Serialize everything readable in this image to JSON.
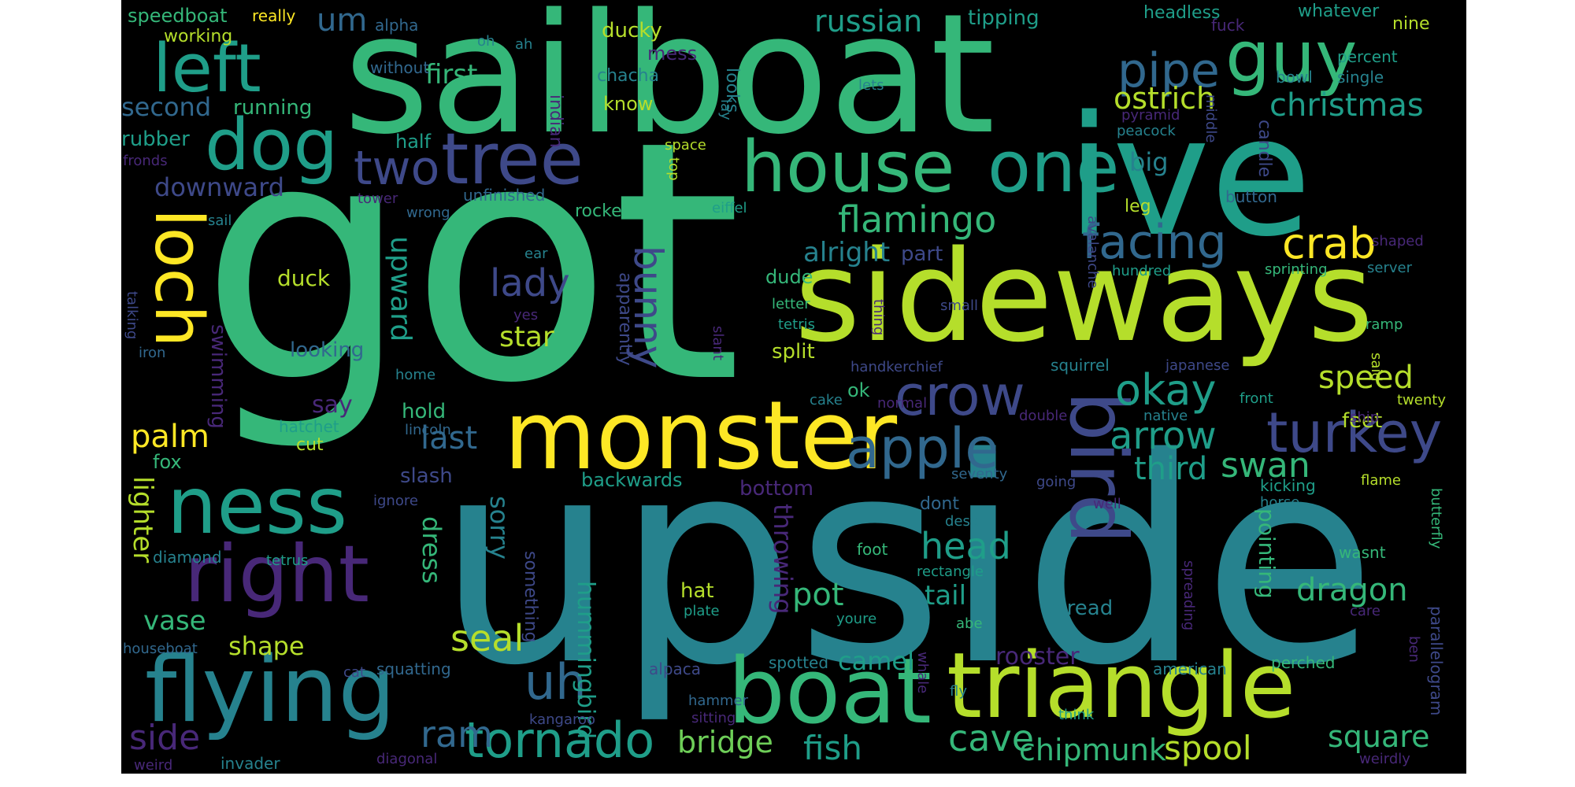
{
  "palette": {
    "background": "#000000",
    "page": "#ffffff",
    "words": [
      "#fde725",
      "#b5de2b",
      "#6ece58",
      "#35b779",
      "#1f9e89",
      "#26828e",
      "#31688e",
      "#3e4989",
      "#482878",
      "#440154"
    ]
  },
  "words": [
    {
      "text": "got"
    },
    {
      "text": "upside"
    },
    {
      "text": "sailboat"
    },
    {
      "text": "sideways"
    },
    {
      "text": "ive"
    },
    {
      "text": "monster"
    },
    {
      "text": "triangle"
    },
    {
      "text": "boat"
    },
    {
      "text": "flying"
    },
    {
      "text": "house"
    },
    {
      "text": "one"
    },
    {
      "text": "right"
    },
    {
      "text": "ness"
    },
    {
      "text": "tree"
    },
    {
      "text": "bird"
    },
    {
      "text": "dog"
    },
    {
      "text": "guy"
    },
    {
      "text": "left"
    },
    {
      "text": "loch"
    },
    {
      "text": "apple"
    },
    {
      "text": "crow"
    },
    {
      "text": "tornado"
    },
    {
      "text": "turkey"
    },
    {
      "text": "pipe"
    },
    {
      "text": "facing"
    },
    {
      "text": "crab"
    },
    {
      "text": "okay"
    },
    {
      "text": "two"
    },
    {
      "text": "uh"
    },
    {
      "text": "bunny"
    },
    {
      "text": "flamingo"
    },
    {
      "text": "arrow"
    },
    {
      "text": "head"
    },
    {
      "text": "cave"
    },
    {
      "text": "christmas"
    },
    {
      "text": "russian"
    },
    {
      "text": "ostrich"
    },
    {
      "text": "ram"
    },
    {
      "text": "swan"
    },
    {
      "text": "fish"
    },
    {
      "text": "third"
    },
    {
      "text": "lady"
    },
    {
      "text": "chipmunk"
    },
    {
      "text": "bridge"
    },
    {
      "text": "dragon"
    },
    {
      "text": "spool"
    },
    {
      "text": "square"
    },
    {
      "text": "speed"
    },
    {
      "text": "seal"
    },
    {
      "text": "side"
    },
    {
      "text": "palm"
    },
    {
      "text": "last"
    },
    {
      "text": "pot"
    },
    {
      "text": "upward"
    },
    {
      "text": "hummingbird"
    },
    {
      "text": "downward"
    },
    {
      "text": "second"
    },
    {
      "text": "first"
    },
    {
      "text": "star"
    },
    {
      "text": "alright"
    },
    {
      "text": "throwing"
    },
    {
      "text": "lighter"
    },
    {
      "text": "vase"
    },
    {
      "text": "tail"
    },
    {
      "text": "big"
    },
    {
      "text": "camel"
    },
    {
      "text": "shape"
    },
    {
      "text": "dress"
    },
    {
      "text": "sorry"
    },
    {
      "text": "rooster"
    },
    {
      "text": "pointing"
    },
    {
      "text": "say"
    },
    {
      "text": "um"
    },
    {
      "text": "duck"
    },
    {
      "text": "swimming"
    },
    {
      "text": "rubber"
    },
    {
      "text": "ducky"
    },
    {
      "text": "tipping"
    },
    {
      "text": "bottom"
    },
    {
      "text": "looking"
    },
    {
      "text": "running"
    },
    {
      "text": "hat"
    },
    {
      "text": "slash"
    },
    {
      "text": "split"
    },
    {
      "text": "part"
    },
    {
      "text": "hold"
    },
    {
      "text": "feet"
    },
    {
      "text": "working"
    },
    {
      "text": "apparently"
    },
    {
      "text": "backwards"
    },
    {
      "text": "dude"
    },
    {
      "text": "mess"
    },
    {
      "text": "know"
    },
    {
      "text": "half"
    },
    {
      "text": "speedboat"
    },
    {
      "text": "ok"
    },
    {
      "text": "fox"
    },
    {
      "text": "something"
    },
    {
      "text": "candle"
    },
    {
      "text": "cut"
    },
    {
      "text": "indian"
    },
    {
      "text": "really"
    },
    {
      "text": "looks"
    },
    {
      "text": "chacha"
    },
    {
      "text": "rocket"
    },
    {
      "text": "alpha"
    },
    {
      "text": "whatever"
    },
    {
      "text": "headless"
    },
    {
      "text": "nine"
    },
    {
      "text": "percent"
    },
    {
      "text": "single"
    },
    {
      "text": "fuck"
    },
    {
      "text": "bowl"
    },
    {
      "text": "pyramid"
    },
    {
      "text": "peacock"
    },
    {
      "text": "middle"
    },
    {
      "text": "lets"
    },
    {
      "text": "lay"
    },
    {
      "text": "space"
    },
    {
      "text": "top"
    },
    {
      "text": "eiffel"
    },
    {
      "text": "tower"
    },
    {
      "text": "unfinished"
    },
    {
      "text": "wrong"
    },
    {
      "text": "fronds"
    },
    {
      "text": "sail"
    },
    {
      "text": "ear"
    },
    {
      "text": "yes"
    },
    {
      "text": "talking"
    },
    {
      "text": "iron"
    },
    {
      "text": "home"
    },
    {
      "text": "hatchet"
    },
    {
      "text": "lincoln"
    },
    {
      "text": "ignore"
    },
    {
      "text": "diamond"
    },
    {
      "text": "tetrus"
    },
    {
      "text": "houseboat"
    },
    {
      "text": "cat"
    },
    {
      "text": "squatting"
    },
    {
      "text": "weird"
    },
    {
      "text": "invader"
    },
    {
      "text": "diagonal"
    },
    {
      "text": "kangaroo"
    },
    {
      "text": "sitting"
    },
    {
      "text": "hammer"
    },
    {
      "text": "alpaca"
    },
    {
      "text": "spotted"
    },
    {
      "text": "whale"
    },
    {
      "text": "fly"
    },
    {
      "text": "think"
    },
    {
      "text": "american"
    },
    {
      "text": "perched"
    },
    {
      "text": "parallelogram"
    },
    {
      "text": "weirdly"
    },
    {
      "text": "ben"
    },
    {
      "text": "care"
    },
    {
      "text": "spreading"
    },
    {
      "text": "wasnt"
    },
    {
      "text": "butterfly"
    },
    {
      "text": "flame"
    },
    {
      "text": "horse"
    },
    {
      "text": "kicking"
    },
    {
      "text": "twenty"
    },
    {
      "text": "ship"
    },
    {
      "text": "said"
    },
    {
      "text": "front"
    },
    {
      "text": "native"
    },
    {
      "text": "double"
    },
    {
      "text": "normal"
    },
    {
      "text": "handkerchief"
    },
    {
      "text": "japanese"
    },
    {
      "text": "squirrel"
    },
    {
      "text": "ramp"
    },
    {
      "text": "server"
    },
    {
      "text": "sprinting"
    },
    {
      "text": "shaped"
    },
    {
      "text": "hundred"
    },
    {
      "text": "avalanche"
    },
    {
      "text": "small"
    },
    {
      "text": "letter"
    },
    {
      "text": "tetris"
    },
    {
      "text": "thing"
    },
    {
      "text": "slant"
    },
    {
      "text": "cake"
    },
    {
      "text": "seventy"
    },
    {
      "text": "going"
    },
    {
      "text": "well"
    },
    {
      "text": "dont"
    },
    {
      "text": "desk"
    },
    {
      "text": "foot"
    },
    {
      "text": "rectangle"
    },
    {
      "text": "youre"
    },
    {
      "text": "abe"
    },
    {
      "text": "plate"
    },
    {
      "text": "thread"
    },
    {
      "text": "button"
    },
    {
      "text": "leg"
    },
    {
      "text": "oh"
    },
    {
      "text": "ah"
    },
    {
      "text": "without"
    }
  ]
}
